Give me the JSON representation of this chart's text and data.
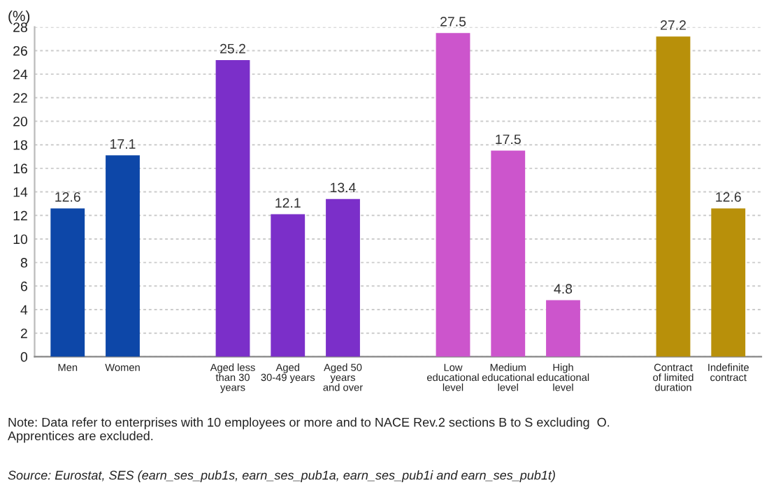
{
  "chart_data": {
    "type": "bar",
    "ylabel": "(%)",
    "categories": [
      "Men",
      "Women",
      null,
      "Aged less\nthan 30\nyears",
      "Aged\n30-49 years",
      "Aged 50\nyears\nand over",
      null,
      "Low\neducational\nlevel",
      "Medium\neducational\nlevel",
      "High\neducational\nlevel",
      null,
      "Contract\nof limited\nduration",
      "Indefinite\ncontract"
    ],
    "values": [
      12.6,
      17.1,
      null,
      25.2,
      12.1,
      13.4,
      null,
      27.5,
      17.5,
      4.8,
      null,
      27.2,
      12.6
    ],
    "colors": [
      "#0d47a8",
      "#0d47a8",
      null,
      "#7b2fc9",
      "#7b2fc9",
      "#7b2fc9",
      null,
      "#cc55cc",
      "#cc55cc",
      "#cc55cc",
      null,
      "#b8900a",
      "#b8900a"
    ],
    "data_labels": true,
    "ylim": [
      0,
      28
    ],
    "yticks": [
      0,
      2,
      4,
      6,
      8,
      10,
      12,
      14,
      16,
      18,
      20,
      22,
      24,
      26,
      28
    ],
    "grid": "y",
    "annotations": [
      "Note: Data refer to enterprises with 10 employees or more and to NACE Rev.2 sections B to S excluding  O.\nApprentices are excluded.",
      "Source: Eurostat, SES (earn_ses_pub1s, earn_ses_pub1a, earn_ses_pub1i and earn_ses_pub1t)"
    ]
  }
}
